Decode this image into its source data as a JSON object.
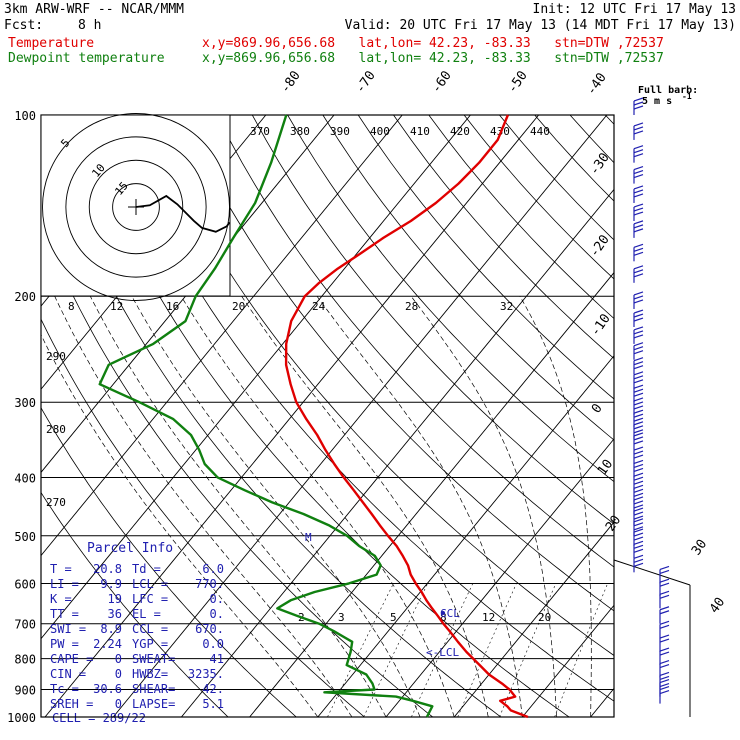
{
  "header": {
    "model": "3km ARW-WRF -- NCAR/MMM",
    "init": "Init: 12 UTC Fri 17 May 13",
    "fcst_label": "Fcst:",
    "fcst_value": "8 h",
    "valid": "Valid: 20 UTC Fri 17 May 13 (14 MDT Fri 17 May 13)",
    "temp_label": "Temperature",
    "dew_label": "Dewpoint temperature",
    "point_info": "x,y=869.96,656.68   lat,lon= 42.23, -83.33   stn=DTW ,72537"
  },
  "full_barb": {
    "line1": "Full barb:",
    "line2": "5 m s",
    "exp": "-1"
  },
  "colors": {
    "temperature": "#e00000",
    "dewpoint": "#108010",
    "accent": "#2020b0",
    "frame": "#000000"
  },
  "chart_data": {
    "type": "line",
    "title": "",
    "xlabel": "",
    "ylabel": "",
    "y_axis_pressure_hpa": [
      100,
      200,
      300,
      400,
      500,
      600,
      700,
      800,
      900,
      1000
    ],
    "y_scale": "log",
    "isotherm_labels": [
      "-80",
      "-70",
      "-60",
      "-50",
      "-40",
      "-30",
      "-20",
      "-10",
      "0",
      "10",
      "20",
      "30",
      "40"
    ],
    "theta_labels": [
      "370",
      "380",
      "390",
      "400",
      "410",
      "420",
      "430",
      "440"
    ],
    "mixing_ratio_labels": [
      "8",
      "12",
      "16",
      "20",
      "24",
      "28",
      "32"
    ],
    "mixing_ratio_low_labels": [
      "2",
      "3",
      "5",
      "8",
      "12",
      "20"
    ],
    "left_theta_labels": [
      "290",
      "280",
      "270"
    ],
    "series": [
      {
        "name": "Temperature",
        "color": "#e00000",
        "pressure": [
          1000,
          975,
          960,
          940,
          925,
          900,
          880,
          850,
          820,
          780,
          750,
          720,
          700,
          680,
          660,
          640,
          620,
          600,
          580,
          560,
          540,
          520,
          500,
          480,
          460,
          440,
          420,
          400,
          380,
          360,
          340,
          320,
          300,
          280,
          260,
          240,
          220,
          200,
          190,
          180,
          170,
          160,
          150,
          140,
          130,
          120,
          110,
          100
        ],
        "temperature_c": [
          20.8,
          17.5,
          16.5,
          14.8,
          16.5,
          14.8,
          13.0,
          10.0,
          7.5,
          4.0,
          1.5,
          -1.0,
          -2.8,
          -4.5,
          -6.3,
          -8.1,
          -9.8,
          -11.7,
          -13.5,
          -15.0,
          -16.9,
          -19.0,
          -21.5,
          -24.0,
          -26.5,
          -29.2,
          -32.0,
          -35.0,
          -38.0,
          -41.0,
          -44.0,
          -47.5,
          -51.0,
          -54.0,
          -57.0,
          -59.5,
          -61.5,
          -62.5,
          -62.0,
          -61.0,
          -59.5,
          -58.0,
          -56.0,
          -54.5,
          -53.5,
          -53.0,
          -53.0,
          -54.5
        ]
      },
      {
        "name": "Dewpoint temperature",
        "color": "#108010",
        "pressure": [
          1000,
          960,
          940,
          925,
          910,
          900,
          880,
          850,
          820,
          780,
          750,
          720,
          700,
          680,
          660,
          640,
          620,
          600,
          580,
          560,
          540,
          520,
          500,
          480,
          460,
          440,
          420,
          400,
          380,
          360,
          340,
          320,
          300,
          280,
          260,
          240,
          220,
          200,
          180,
          160,
          140,
          120,
          100
        ],
        "temperature_c": [
          6.0,
          5.5,
          2.0,
          -1.0,
          -12.0,
          -5.0,
          -6.0,
          -8.0,
          -12.0,
          -13.0,
          -14.0,
          -18.0,
          -21.0,
          -25.0,
          -29.0,
          -28.0,
          -25.5,
          -21.5,
          -18.5,
          -19.0,
          -21.0,
          -24.5,
          -27.5,
          -31.5,
          -36.5,
          -42.5,
          -48.0,
          -53.5,
          -57.0,
          -59.5,
          -62.5,
          -67.0,
          -74.0,
          -82.0,
          -83.0,
          -79.0,
          -77.0,
          -78.5,
          -79.0,
          -80.0,
          -81.0,
          -83.5,
          -87.0
        ]
      }
    ],
    "markers": [
      {
        "label": "CCL",
        "pressure": 670
      },
      {
        "label": "<-LCL",
        "pressure": 770
      },
      {
        "label": "M",
        "pressure": 500
      }
    ],
    "hodograph": {
      "units": "kts",
      "rings": [
        "5",
        "10",
        "15"
      ],
      "points_u_v": [
        [
          0.0,
          0.0
        ],
        [
          2.5,
          0.3
        ],
        [
          5.5,
          2.0
        ],
        [
          7.5,
          0.5
        ],
        [
          10.5,
          -2.5
        ],
        [
          12.0,
          -3.8
        ],
        [
          14.5,
          -4.5
        ],
        [
          16.5,
          -3.5
        ],
        [
          17.0,
          -2.8
        ]
      ]
    },
    "wind_barbs": [
      {
        "pressure": 100,
        "speed_ms": 15
      },
      {
        "pressure": 110,
        "speed_ms": 15
      },
      {
        "pressure": 120,
        "speed_ms": 15
      },
      {
        "pressure": 130,
        "speed_ms": 15
      },
      {
        "pressure": 140,
        "speed_ms": 15
      },
      {
        "pressure": 150,
        "speed_ms": 15
      },
      {
        "pressure": 160,
        "speed_ms": 15
      },
      {
        "pressure": 175,
        "speed_ms": 15
      },
      {
        "pressure": 190,
        "speed_ms": 15
      },
      {
        "pressure": 210,
        "speed_ms": 15
      },
      {
        "pressure": 225,
        "speed_ms": 15
      },
      {
        "pressure": 240,
        "speed_ms": 15
      },
      {
        "pressure": 255,
        "speed_ms": 15
      },
      {
        "pressure": 270,
        "speed_ms": 15
      },
      {
        "pressure": 285,
        "speed_ms": 15
      },
      {
        "pressure": 300,
        "speed_ms": 15
      },
      {
        "pressure": 315,
        "speed_ms": 15
      },
      {
        "pressure": 330,
        "speed_ms": 15
      },
      {
        "pressure": 345,
        "speed_ms": 15
      },
      {
        "pressure": 360,
        "speed_ms": 15
      },
      {
        "pressure": 380,
        "speed_ms": 15
      },
      {
        "pressure": 400,
        "speed_ms": 15
      },
      {
        "pressure": 420,
        "speed_ms": 15
      },
      {
        "pressure": 440,
        "speed_ms": 15
      },
      {
        "pressure": 460,
        "speed_ms": 15
      },
      {
        "pressure": 480,
        "speed_ms": 15
      },
      {
        "pressure": 500,
        "speed_ms": 15
      },
      {
        "pressure": 520,
        "speed_ms": 15
      },
      {
        "pressure": 545,
        "speed_ms": 15
      },
      {
        "pressure": 575,
        "speed_ms": 15
      },
      {
        "pressure": 600,
        "speed_ms": 10
      },
      {
        "pressure": 630,
        "speed_ms": 10
      },
      {
        "pressure": 660,
        "speed_ms": 10
      },
      {
        "pressure": 700,
        "speed_ms": 10
      },
      {
        "pressure": 740,
        "speed_ms": 10
      },
      {
        "pressure": 780,
        "speed_ms": 10
      },
      {
        "pressure": 820,
        "speed_ms": 10
      },
      {
        "pressure": 860,
        "speed_ms": 10
      },
      {
        "pressure": 900,
        "speed_ms": 10
      },
      {
        "pressure": 925,
        "speed_ms": 10
      },
      {
        "pressure": 950,
        "speed_ms": 10
      }
    ]
  },
  "parcel_info": {
    "title": "Parcel Info",
    "rows": [
      {
        "l1": "T  =",
        "v1": "20.8",
        "l2": "Td =",
        "v2": "6.0"
      },
      {
        "l1": "LI =",
        "v1": "9.9",
        "l2": "LCL =",
        "v2": "770."
      },
      {
        "l1": "K  =",
        "v1": "19",
        "l2": "LFC =",
        "v2": "0."
      },
      {
        "l1": "TT =",
        "v1": "36",
        "l2": "EL  =",
        "v2": "0."
      },
      {
        "l1": "SWI =",
        "v1": "8.9",
        "l2": "CCL =",
        "v2": "670."
      },
      {
        "l1": "PW =",
        "v1": "2.24",
        "l2": "YGP =",
        "v2": "0.0"
      },
      {
        "l1": "CAPE =",
        "v1": "0",
        "l2": "SWEAT=",
        "v2": "41"
      },
      {
        "l1": "CIN =",
        "v1": "0",
        "l2": "HWBZ=",
        "v2": "3235."
      },
      {
        "l1": "Tc =",
        "v1": "30.6",
        "l2": "SHEAR=",
        "v2": "42."
      },
      {
        "l1": "SREH =",
        "v1": "0",
        "l2": "LAPSE=",
        "v2": "5.1"
      }
    ],
    "cell": "CELL = 289/22"
  }
}
